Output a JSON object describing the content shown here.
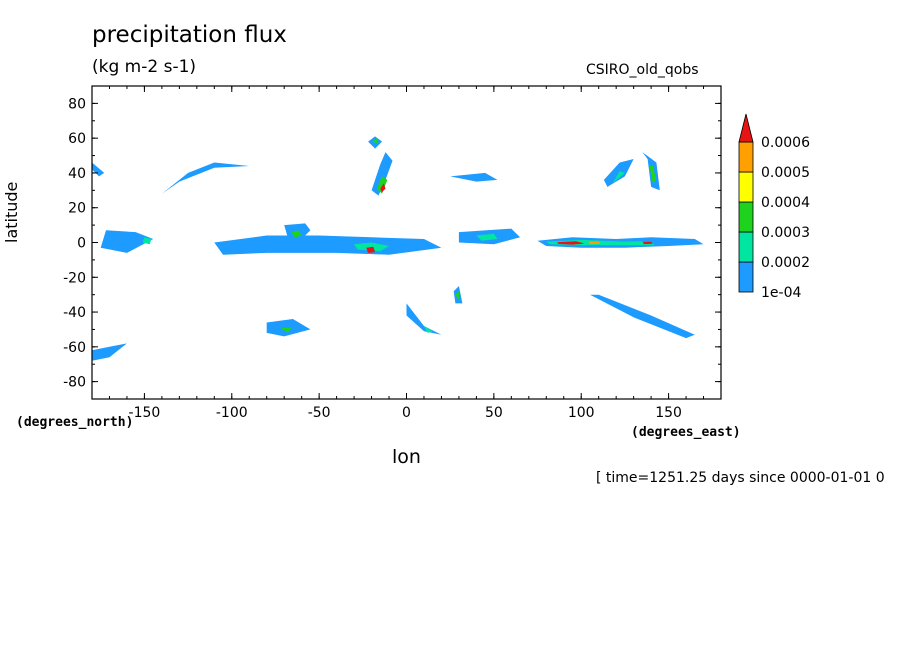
{
  "chart_data": {
    "type": "contour-map",
    "title": "precipitation flux",
    "units": "(kg m-2 s-1)",
    "model": "CSIRO_old_qobs",
    "xlabel": "lon",
    "ylabel": "latitude",
    "x_units": "(degrees_east)",
    "y_units": "(degrees_north)",
    "time_label": "[ time=1251.25 days since 0000-01-01 0",
    "xlim": [
      -180,
      180
    ],
    "ylim": [
      -90,
      90
    ],
    "x_ticks": [
      -150,
      -100,
      -50,
      0,
      50,
      100,
      150
    ],
    "y_ticks": [
      80,
      60,
      40,
      20,
      0,
      -20,
      -40,
      -60,
      -80
    ],
    "colorbar": {
      "levels": [
        "1e-04",
        "0.0002",
        "0.0003",
        "0.0004",
        "0.0005",
        "0.0006"
      ],
      "colors": [
        "#1e9bff",
        "#00e6a0",
        "#1ed21e",
        "#ffff00",
        "#ffa000",
        "#e61414"
      ]
    },
    "regions": [
      {
        "name": "itcz-west-pacific",
        "points": [
          [
            75,
            1
          ],
          [
            95,
            3
          ],
          [
            120,
            2
          ],
          [
            140,
            3
          ],
          [
            165,
            2
          ],
          [
            170,
            -1
          ],
          [
            150,
            -2
          ],
          [
            125,
            -3
          ],
          [
            100,
            -3
          ],
          [
            80,
            -2
          ]
        ],
        "level": 0
      },
      {
        "name": "itcz-west-pacific-core",
        "points": [
          [
            80,
            0.5
          ],
          [
            100,
            1.5
          ],
          [
            125,
            0.5
          ],
          [
            140,
            0.8
          ],
          [
            142,
            -1.5
          ],
          [
            120,
            -1.5
          ],
          [
            100,
            -1.5
          ],
          [
            82,
            -1
          ]
        ],
        "level": 1
      },
      {
        "name": "itcz-west-pacific-max1",
        "points": [
          [
            86,
            0.2
          ],
          [
            97,
            0.7
          ],
          [
            102,
            -0.6
          ],
          [
            95,
            -1.2
          ],
          [
            87,
            -0.8
          ]
        ],
        "level": 5
      },
      {
        "name": "itcz-west-pacific-max2",
        "points": [
          [
            104,
            0.4
          ],
          [
            110,
            0.6
          ],
          [
            111,
            -0.7
          ],
          [
            105,
            -0.9
          ]
        ],
        "level": 4
      },
      {
        "name": "itcz-west-pacific-max3",
        "points": [
          [
            135,
            0.4
          ],
          [
            140,
            0.6
          ],
          [
            141,
            -0.7
          ],
          [
            136,
            -0.9
          ]
        ],
        "level": 5
      },
      {
        "name": "itcz-atlantic-africa",
        "points": [
          [
            -110,
            0
          ],
          [
            -80,
            4
          ],
          [
            -50,
            4
          ],
          [
            -20,
            3
          ],
          [
            10,
            2
          ],
          [
            20,
            -3
          ],
          [
            -10,
            -7
          ],
          [
            -40,
            -6
          ],
          [
            -80,
            -6
          ],
          [
            -105,
            -7
          ]
        ],
        "level": 0
      },
      {
        "name": "itcz-atlantic-core",
        "points": [
          [
            -30,
            -1
          ],
          [
            -20,
            0
          ],
          [
            -10,
            -2
          ],
          [
            -15,
            -5
          ],
          [
            -28,
            -4
          ]
        ],
        "level": 1
      },
      {
        "name": "itcz-atlantic-max",
        "points": [
          [
            -23,
            -3
          ],
          [
            -19,
            -2.5
          ],
          [
            -18,
            -5.5
          ],
          [
            -22,
            -6
          ]
        ],
        "level": 5
      },
      {
        "name": "itcz-east-pacific",
        "points": [
          [
            -70,
            10
          ],
          [
            -58,
            11
          ],
          [
            -55,
            7
          ],
          [
            -60,
            2
          ],
          [
            -68,
            3
          ]
        ],
        "level": 0
      },
      {
        "name": "itcz-east-pacific-core",
        "points": [
          [
            -66,
            6
          ],
          [
            -62,
            7
          ],
          [
            -60,
            4
          ],
          [
            -64,
            3
          ]
        ],
        "level": 2
      },
      {
        "name": "itcz-central",
        "points": [
          [
            30,
            6
          ],
          [
            60,
            8
          ],
          [
            65,
            3
          ],
          [
            50,
            -1
          ],
          [
            30,
            0
          ]
        ],
        "level": 0
      },
      {
        "name": "itcz-central-core",
        "points": [
          [
            40,
            4
          ],
          [
            50,
            5
          ],
          [
            52,
            2
          ],
          [
            43,
            1
          ]
        ],
        "level": 1
      },
      {
        "name": "itcz-far-west",
        "points": [
          [
            -172,
            7
          ],
          [
            -155,
            6
          ],
          [
            -145,
            2
          ],
          [
            -160,
            -6
          ],
          [
            -175,
            -3
          ]
        ],
        "level": 0
      },
      {
        "name": "itcz-far-west-core",
        "points": [
          [
            -150,
            3
          ],
          [
            -146,
            2
          ],
          [
            -147,
            -1
          ],
          [
            -151,
            0
          ]
        ],
        "level": 1
      },
      {
        "name": "north-atlantic-storm",
        "points": [
          [
            -20,
            30
          ],
          [
            -15,
            45
          ],
          [
            -12,
            52
          ],
          [
            -8,
            47
          ],
          [
            -12,
            36
          ],
          [
            -16,
            27
          ]
        ],
        "level": 0
      },
      {
        "name": "north-atlantic-storm-core",
        "points": [
          [
            -17,
            31
          ],
          [
            -14,
            38
          ],
          [
            -11,
            36
          ],
          [
            -14,
            28
          ]
        ],
        "level": 2
      },
      {
        "name": "north-atlantic-storm-max",
        "points": [
          [
            -15,
            31
          ],
          [
            -13,
            34
          ],
          [
            -12,
            31
          ],
          [
            -14,
            29
          ]
        ],
        "level": 5
      },
      {
        "name": "iceland-low",
        "points": [
          [
            -22,
            58
          ],
          [
            -18,
            61
          ],
          [
            -14,
            58
          ],
          [
            -18,
            54
          ]
        ],
        "level": 0
      },
      {
        "name": "iceland-low-core",
        "points": [
          [
            -20,
            58
          ],
          [
            -17,
            60
          ],
          [
            -16,
            57
          ]
        ],
        "level": 2
      },
      {
        "name": "north-pacific-front",
        "points": [
          [
            -140,
            28
          ],
          [
            -125,
            40
          ],
          [
            -110,
            46
          ],
          [
            -90,
            44
          ],
          [
            -110,
            43
          ],
          [
            -130,
            35
          ]
        ],
        "level": 0
      },
      {
        "name": "asia-front",
        "points": [
          [
            115,
            32
          ],
          [
            125,
            38
          ],
          [
            130,
            48
          ],
          [
            122,
            46
          ],
          [
            113,
            36
          ]
        ],
        "level": 0
      },
      {
        "name": "asia-front-core",
        "points": [
          [
            118,
            34
          ],
          [
            125,
            40
          ],
          [
            122,
            41
          ]
        ],
        "level": 1
      },
      {
        "name": "japan-front",
        "points": [
          [
            135,
            52
          ],
          [
            143,
            46
          ],
          [
            145,
            30
          ],
          [
            140,
            32
          ],
          [
            138,
            48
          ]
        ],
        "level": 0
      },
      {
        "name": "japan-front-core",
        "points": [
          [
            141,
            44
          ],
          [
            143,
            36
          ],
          [
            141,
            34
          ],
          [
            139,
            44
          ]
        ],
        "level": 2
      },
      {
        "name": "med-front",
        "points": [
          [
            25,
            38
          ],
          [
            45,
            40
          ],
          [
            52,
            36
          ],
          [
            40,
            35
          ]
        ],
        "level": 0
      },
      {
        "name": "south-pacific-front",
        "points": [
          [
            110,
            -30
          ],
          [
            140,
            -42
          ],
          [
            165,
            -53
          ],
          [
            160,
            -55
          ],
          [
            130,
            -43
          ],
          [
            105,
            -30
          ]
        ],
        "level": 0
      },
      {
        "name": "south-atlantic-front",
        "points": [
          [
            0,
            -35
          ],
          [
            10,
            -48
          ],
          [
            20,
            -53
          ],
          [
            10,
            -51
          ],
          [
            0,
            -42
          ]
        ],
        "level": 0
      },
      {
        "name": "south-atlantic-front-core",
        "points": [
          [
            10,
            -48
          ],
          [
            15,
            -51
          ],
          [
            12,
            -52
          ]
        ],
        "level": 1
      },
      {
        "name": "south-america-low",
        "points": [
          [
            -80,
            -46
          ],
          [
            -65,
            -44
          ],
          [
            -55,
            -50
          ],
          [
            -70,
            -54
          ],
          [
            -80,
            -52
          ]
        ],
        "level": 0
      },
      {
        "name": "south-america-low-core",
        "points": [
          [
            -72,
            -49
          ],
          [
            -66,
            -49
          ],
          [
            -68,
            -52
          ]
        ],
        "level": 2
      },
      {
        "name": "africa-south",
        "points": [
          [
            27,
            -28
          ],
          [
            30,
            -25
          ],
          [
            32,
            -35
          ],
          [
            28,
            -35
          ]
        ],
        "level": 0
      },
      {
        "name": "africa-south-core",
        "points": [
          [
            28,
            -30
          ],
          [
            30,
            -28
          ],
          [
            30,
            -33
          ]
        ],
        "level": 2
      },
      {
        "name": "southwest-corner-low",
        "points": [
          [
            -180,
            -62
          ],
          [
            -170,
            -60
          ],
          [
            -160,
            -58
          ],
          [
            -170,
            -66
          ],
          [
            -180,
            -68
          ]
        ],
        "level": 0
      },
      {
        "name": "northwest-corner",
        "points": [
          [
            -180,
            46
          ],
          [
            -173,
            40
          ],
          [
            -176,
            38
          ],
          [
            -180,
            42
          ]
        ],
        "level": 0
      }
    ]
  }
}
